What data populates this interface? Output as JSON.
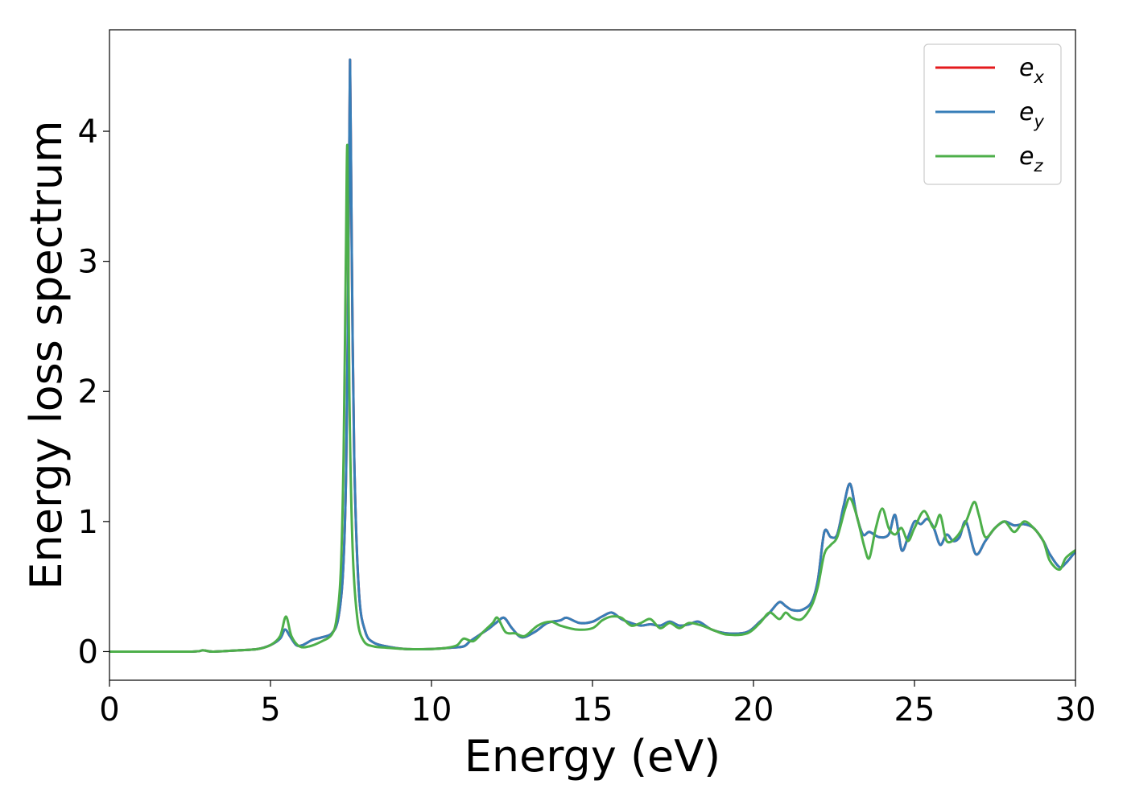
{
  "chart_data": {
    "type": "line",
    "title": "",
    "xlabel": "Energy (eV)",
    "ylabel": "Energy loss spectrum",
    "xlim": [
      0,
      30
    ],
    "ylim": [
      -0.22,
      4.78
    ],
    "xticks": [
      0,
      5,
      10,
      15,
      20,
      25,
      30
    ],
    "yticks": [
      0,
      1,
      2,
      3,
      4
    ],
    "grid": false,
    "legend_position": "top-right",
    "series": [
      {
        "name": "e_x",
        "label_base": "e",
        "label_sub": "x",
        "color": "#e41a1c",
        "x": [
          0,
          2.5,
          2.9,
          3.2,
          4.0,
          4.6,
          5.0,
          5.3,
          5.45,
          5.6,
          5.8,
          6.0,
          6.3,
          6.6,
          6.9,
          7.1,
          7.25,
          7.35,
          7.42,
          7.47,
          7.52,
          7.6,
          7.75,
          7.95,
          8.2,
          8.6,
          9.2,
          10.0,
          10.6,
          11.0,
          11.2,
          11.5,
          11.8,
          12.0,
          12.25,
          12.5,
          12.8,
          13.2,
          13.6,
          14.0,
          14.2,
          14.6,
          15.0,
          15.3,
          15.6,
          15.9,
          16.2,
          16.5,
          16.8,
          17.1,
          17.4,
          17.7,
          18.0,
          18.3,
          18.7,
          19.2,
          19.8,
          20.2,
          20.5,
          20.8,
          21.0,
          21.2,
          21.5,
          21.8,
          22.0,
          22.2,
          22.4,
          22.6,
          22.8,
          23.0,
          23.2,
          23.4,
          23.6,
          23.9,
          24.2,
          24.4,
          24.6,
          24.8,
          25.0,
          25.2,
          25.4,
          25.6,
          25.8,
          26.0,
          26.2,
          26.4,
          26.6,
          26.9,
          27.2,
          27.5,
          27.8,
          28.1,
          28.4,
          28.7,
          29.0,
          29.2,
          29.5,
          29.7,
          30.0
        ],
        "values": [
          0.0,
          0.0,
          0.01,
          0.0,
          0.01,
          0.02,
          0.05,
          0.1,
          0.17,
          0.12,
          0.05,
          0.05,
          0.09,
          0.11,
          0.14,
          0.25,
          0.6,
          1.4,
          3.0,
          4.55,
          3.2,
          1.5,
          0.45,
          0.15,
          0.07,
          0.04,
          0.02,
          0.02,
          0.03,
          0.04,
          0.08,
          0.13,
          0.18,
          0.22,
          0.26,
          0.18,
          0.11,
          0.15,
          0.22,
          0.24,
          0.26,
          0.22,
          0.23,
          0.27,
          0.3,
          0.25,
          0.22,
          0.2,
          0.21,
          0.2,
          0.23,
          0.2,
          0.21,
          0.23,
          0.17,
          0.14,
          0.15,
          0.23,
          0.3,
          0.38,
          0.35,
          0.32,
          0.32,
          0.38,
          0.55,
          0.92,
          0.88,
          0.9,
          1.12,
          1.29,
          1.05,
          0.9,
          0.92,
          0.88,
          0.9,
          1.05,
          0.78,
          0.88,
          1.0,
          0.98,
          1.02,
          0.95,
          0.82,
          0.9,
          0.85,
          0.88,
          1.0,
          0.75,
          0.85,
          0.95,
          1.0,
          0.97,
          0.98,
          0.95,
          0.85,
          0.75,
          0.65,
          0.68,
          0.77
        ]
      },
      {
        "name": "e_y",
        "label_base": "e",
        "label_sub": "y",
        "color": "#377eb8",
        "x": [
          0,
          2.5,
          2.9,
          3.2,
          4.0,
          4.6,
          5.0,
          5.3,
          5.45,
          5.6,
          5.8,
          6.0,
          6.3,
          6.6,
          6.9,
          7.1,
          7.25,
          7.35,
          7.42,
          7.47,
          7.52,
          7.6,
          7.75,
          7.95,
          8.2,
          8.6,
          9.2,
          10.0,
          10.6,
          11.0,
          11.2,
          11.5,
          11.8,
          12.0,
          12.25,
          12.5,
          12.8,
          13.2,
          13.6,
          14.0,
          14.2,
          14.6,
          15.0,
          15.3,
          15.6,
          15.9,
          16.2,
          16.5,
          16.8,
          17.1,
          17.4,
          17.7,
          18.0,
          18.3,
          18.7,
          19.2,
          19.8,
          20.2,
          20.5,
          20.8,
          21.0,
          21.2,
          21.5,
          21.8,
          22.0,
          22.2,
          22.4,
          22.6,
          22.8,
          23.0,
          23.2,
          23.4,
          23.6,
          23.9,
          24.2,
          24.4,
          24.6,
          24.8,
          25.0,
          25.2,
          25.4,
          25.6,
          25.8,
          26.0,
          26.2,
          26.4,
          26.6,
          26.9,
          27.2,
          27.5,
          27.8,
          28.1,
          28.4,
          28.7,
          29.0,
          29.2,
          29.5,
          29.7,
          30.0
        ],
        "values": [
          0.0,
          0.0,
          0.01,
          0.0,
          0.01,
          0.02,
          0.05,
          0.1,
          0.17,
          0.12,
          0.05,
          0.05,
          0.09,
          0.11,
          0.14,
          0.25,
          0.6,
          1.4,
          3.0,
          4.55,
          3.2,
          1.5,
          0.45,
          0.15,
          0.07,
          0.04,
          0.02,
          0.02,
          0.03,
          0.04,
          0.08,
          0.13,
          0.18,
          0.22,
          0.26,
          0.18,
          0.11,
          0.15,
          0.22,
          0.24,
          0.26,
          0.22,
          0.23,
          0.27,
          0.3,
          0.25,
          0.22,
          0.2,
          0.21,
          0.2,
          0.23,
          0.2,
          0.21,
          0.23,
          0.17,
          0.14,
          0.15,
          0.23,
          0.3,
          0.38,
          0.35,
          0.32,
          0.32,
          0.38,
          0.55,
          0.92,
          0.88,
          0.9,
          1.12,
          1.29,
          1.05,
          0.9,
          0.92,
          0.88,
          0.9,
          1.05,
          0.78,
          0.88,
          1.0,
          0.98,
          1.02,
          0.95,
          0.82,
          0.9,
          0.85,
          0.88,
          1.0,
          0.75,
          0.85,
          0.95,
          1.0,
          0.97,
          0.98,
          0.95,
          0.85,
          0.75,
          0.65,
          0.68,
          0.77
        ]
      },
      {
        "name": "e_z",
        "label_base": "e",
        "label_sub": "z",
        "color": "#4daf4a",
        "x": [
          0,
          2.5,
          2.9,
          3.2,
          4.0,
          4.6,
          5.0,
          5.3,
          5.48,
          5.65,
          5.9,
          6.2,
          6.6,
          6.9,
          7.05,
          7.18,
          7.27,
          7.34,
          7.39,
          7.45,
          7.55,
          7.7,
          7.9,
          8.2,
          8.6,
          9.2,
          10.0,
          10.5,
          10.8,
          11.0,
          11.3,
          11.6,
          11.9,
          12.05,
          12.3,
          12.6,
          12.9,
          13.3,
          13.7,
          14.0,
          14.5,
          15.0,
          15.3,
          15.6,
          15.9,
          16.2,
          16.5,
          16.8,
          17.1,
          17.4,
          17.7,
          18.0,
          18.4,
          18.8,
          19.2,
          19.8,
          20.2,
          20.5,
          20.8,
          21.0,
          21.2,
          21.5,
          21.8,
          22.0,
          22.2,
          22.4,
          22.6,
          22.85,
          23.0,
          23.2,
          23.45,
          23.6,
          23.8,
          24.0,
          24.2,
          24.4,
          24.6,
          24.8,
          25.0,
          25.3,
          25.6,
          25.8,
          26.0,
          26.3,
          26.6,
          26.85,
          27.0,
          27.2,
          27.5,
          27.8,
          28.1,
          28.4,
          28.7,
          29.0,
          29.2,
          29.5,
          29.7,
          30.0
        ],
        "values": [
          0.0,
          0.0,
          0.01,
          0.0,
          0.01,
          0.02,
          0.05,
          0.12,
          0.27,
          0.12,
          0.04,
          0.04,
          0.08,
          0.13,
          0.25,
          0.6,
          1.5,
          3.0,
          3.87,
          2.0,
          0.8,
          0.25,
          0.08,
          0.04,
          0.03,
          0.02,
          0.02,
          0.03,
          0.05,
          0.1,
          0.08,
          0.15,
          0.22,
          0.26,
          0.15,
          0.14,
          0.12,
          0.2,
          0.23,
          0.2,
          0.17,
          0.18,
          0.24,
          0.27,
          0.26,
          0.2,
          0.22,
          0.25,
          0.18,
          0.22,
          0.18,
          0.22,
          0.2,
          0.16,
          0.13,
          0.14,
          0.22,
          0.3,
          0.25,
          0.3,
          0.26,
          0.25,
          0.35,
          0.5,
          0.75,
          0.82,
          0.88,
          1.1,
          1.18,
          1.05,
          0.8,
          0.72,
          0.95,
          1.1,
          0.95,
          0.9,
          0.95,
          0.85,
          0.95,
          1.08,
          0.95,
          1.05,
          0.85,
          0.88,
          1.0,
          1.15,
          1.05,
          0.88,
          0.95,
          1.0,
          0.92,
          1.0,
          0.95,
          0.85,
          0.7,
          0.63,
          0.72,
          0.78
        ]
      }
    ]
  }
}
